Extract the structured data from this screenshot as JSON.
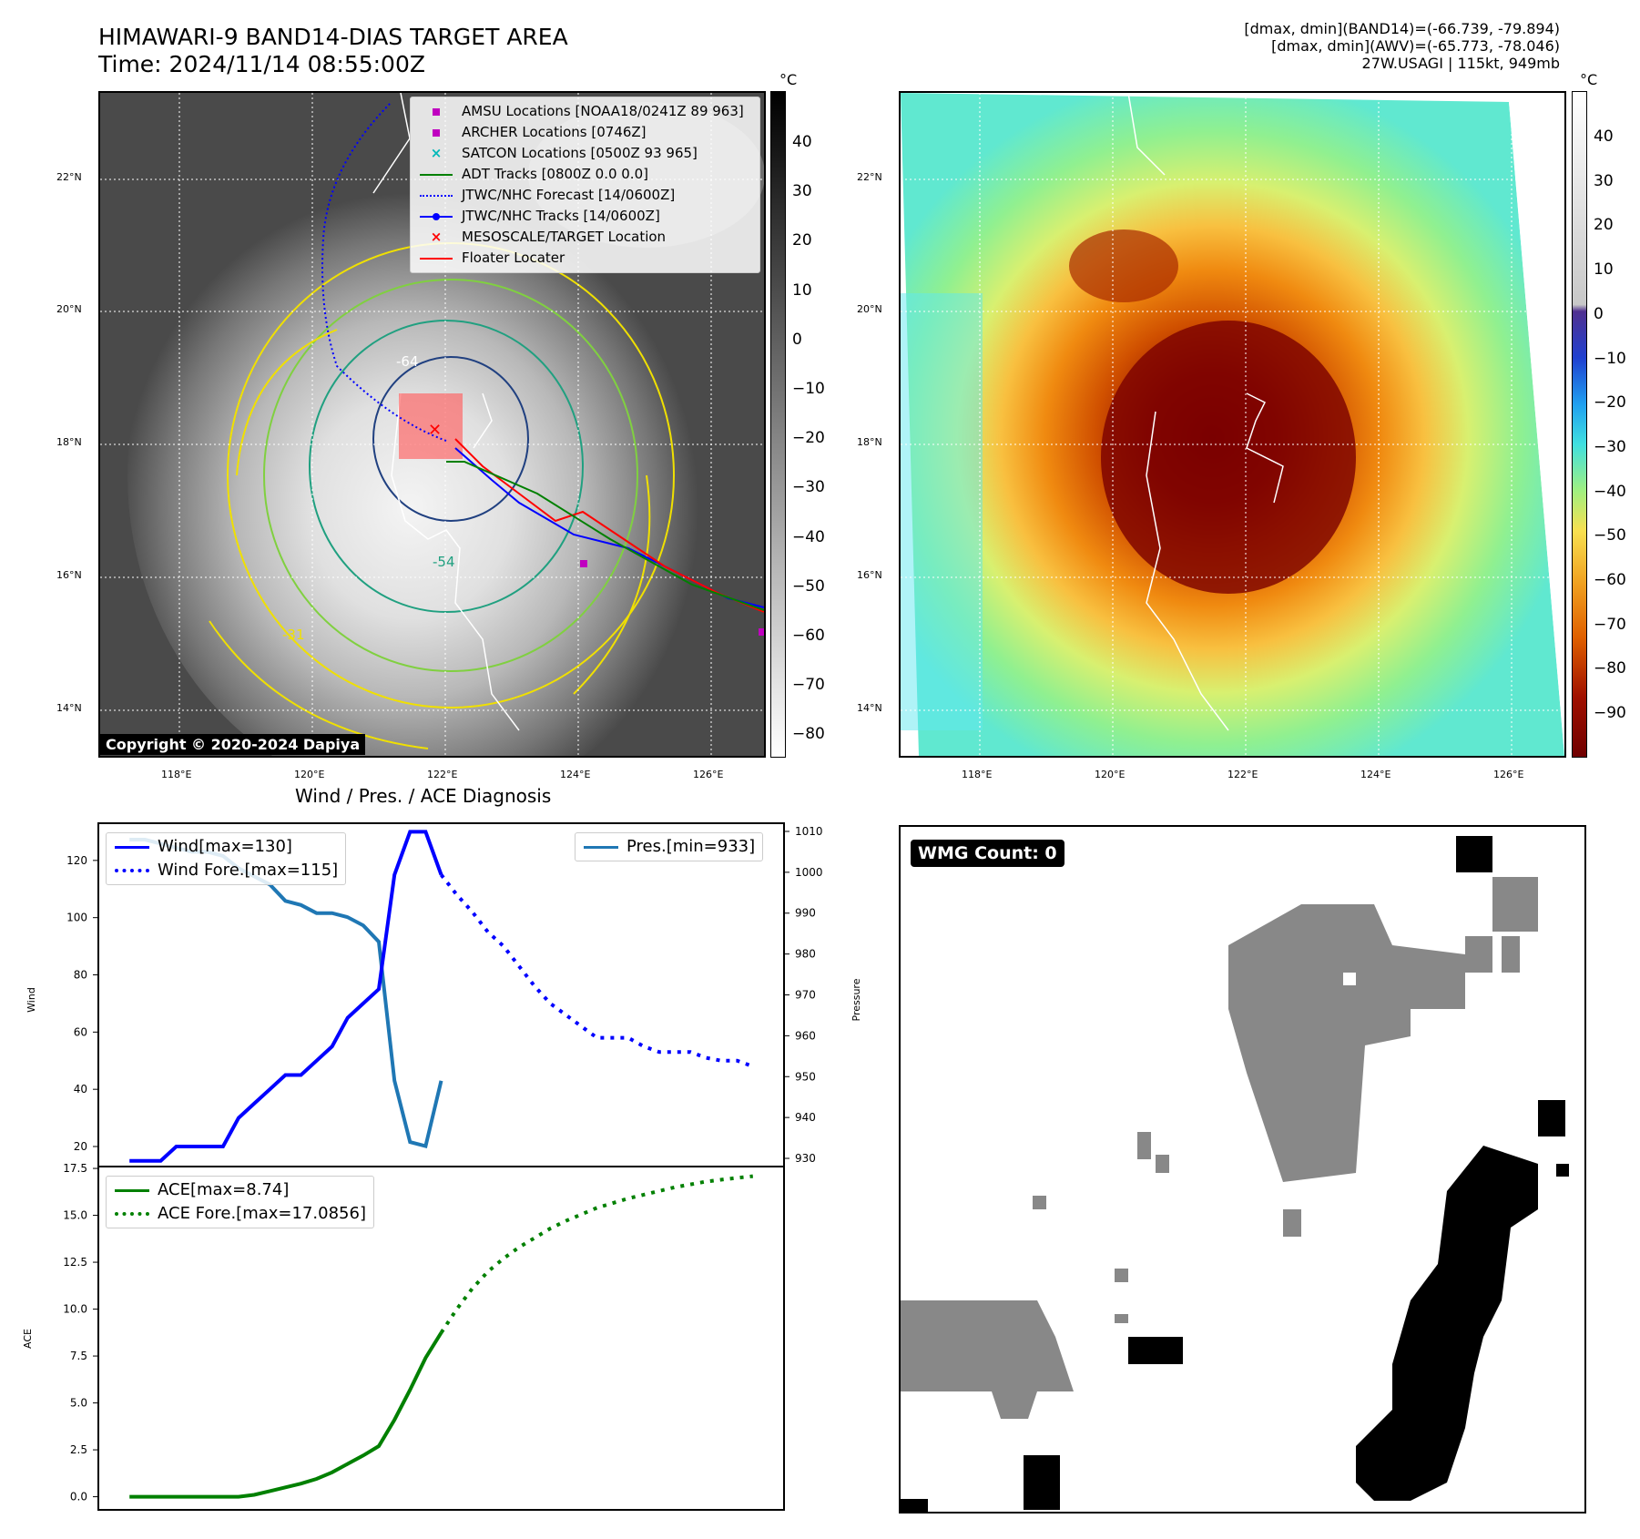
{
  "title": {
    "line1": "HIMAWARI-9 BAND14-DIAS TARGET AREA",
    "line2": "Time: 2024/11/14 08:55:00Z"
  },
  "info": {
    "line1": "[dmax, dmin](BAND14)=(-66.739, -79.894)",
    "line2": "[dmax, dmin](AWV)=(-65.773, -78.046)",
    "line3": "27W.USAGI | 115kt, 949mb"
  },
  "map": {
    "lat_labels": [
      "22°N",
      "20°N",
      "18°N",
      "16°N",
      "14°N"
    ],
    "lon_labels": [
      "118°E",
      "120°E",
      "122°E",
      "124°E",
      "126°E"
    ],
    "contour_labels": [
      "-64",
      "-54",
      "-31"
    ],
    "copyright": "Copyright © 2020-2024 Dapiya"
  },
  "colorbar_gray": {
    "unit": "°C",
    "ticks": [
      "40",
      "30",
      "20",
      "10",
      "0",
      "−10",
      "−20",
      "−30",
      "−40",
      "−50",
      "−60",
      "−70",
      "−80"
    ]
  },
  "colorbar_color": {
    "unit": "°C",
    "ticks": [
      "40",
      "30",
      "20",
      "10",
      "0",
      "−10",
      "−20",
      "−30",
      "−40",
      "−50",
      "−60",
      "−70",
      "−80",
      "−90"
    ]
  },
  "legend_map": {
    "items": [
      {
        "label": "AMSU Locations [NOAA18/0241Z 89 963]",
        "color": "#c000c0"
      },
      {
        "label": "ARCHER Locations [0746Z]",
        "color": "#c000c0"
      },
      {
        "label": "SATCON Locations [0500Z 93 965]",
        "color": "#00b8b8"
      },
      {
        "label": "ADT Tracks [0800Z 0.0 0.0]",
        "color": "#008000"
      },
      {
        "label": "JTWC/NHC Forecast [14/0600Z]",
        "color": "#0000ff"
      },
      {
        "label": "JTWC/NHC Tracks [14/0600Z]",
        "color": "#0000ff"
      },
      {
        "label": "MESOSCALE/TARGET Location",
        "color": "#ff0000"
      },
      {
        "label": "Floater Locater",
        "color": "#ff0000"
      }
    ]
  },
  "diagnosis": {
    "title": "Wind / Pres. / ACE Diagnosis",
    "wind_label": "Wind[max=130]",
    "wind_fore_label": "Wind Fore.[max=115]",
    "pres_label": "Pres.[min=933]",
    "ace_label": "ACE[max=8.74]",
    "ace_fore_label": "ACE Fore.[max=17.0856]",
    "wind_axis": "Wind",
    "pres_axis": "Pressure",
    "ace_axis": "ACE"
  },
  "wmg": {
    "label": "WMG Count: 0"
  },
  "chart_data": [
    {
      "type": "line",
      "title": "Wind / Pres. / ACE Diagnosis",
      "ylabel": "Wind",
      "ylim": [
        13,
        133
      ],
      "yticks": [
        20,
        40,
        60,
        80,
        100,
        120
      ],
      "series": [
        {
          "name": "Wind[max=130]",
          "color": "#0000ff",
          "style": "solid",
          "x": [
            0,
            1,
            2,
            3,
            4,
            5,
            6,
            7,
            8,
            9,
            10,
            11,
            12,
            13,
            14,
            15,
            16,
            17,
            18,
            19,
            20
          ],
          "values": [
            15,
            15,
            15,
            20,
            20,
            20,
            20,
            30,
            35,
            40,
            45,
            45,
            50,
            55,
            65,
            70,
            75,
            115,
            130,
            130,
            115
          ]
        },
        {
          "name": "Wind Fore.[max=115]",
          "color": "#0000ff",
          "style": "dotted",
          "x": [
            20,
            21,
            22,
            23,
            24,
            25,
            26,
            27,
            28,
            29,
            30,
            31,
            32,
            33,
            34,
            35,
            36,
            37,
            38,
            39,
            40
          ],
          "values": [
            115,
            108,
            102,
            95,
            90,
            83,
            76,
            70,
            66,
            62,
            58,
            58,
            58,
            55,
            53,
            53,
            53,
            51,
            50,
            50,
            48
          ]
        }
      ]
    },
    {
      "type": "line",
      "ylabel": "Pressure",
      "ylim": [
        928,
        1012
      ],
      "yticks": [
        930,
        940,
        950,
        960,
        970,
        980,
        990,
        1000,
        1010
      ],
      "series": [
        {
          "name": "Pres.[min=933]",
          "color": "#1f77b4",
          "style": "solid",
          "x": [
            0,
            1,
            2,
            3,
            4,
            5,
            6,
            7,
            8,
            9,
            10,
            11,
            12,
            13,
            14,
            15,
            16,
            17,
            18,
            19,
            20
          ],
          "values": [
            1008,
            1008,
            1007,
            1006,
            1005,
            1005,
            1004,
            1001,
            999,
            997,
            993,
            992,
            990,
            990,
            989,
            987,
            983,
            949,
            934,
            933,
            949
          ]
        }
      ]
    },
    {
      "type": "line",
      "ylabel": "ACE",
      "ylim": [
        -0.7,
        17.6
      ],
      "yticks": [
        0.0,
        2.5,
        5.0,
        7.5,
        10.0,
        12.5,
        15.0,
        17.5
      ],
      "series": [
        {
          "name": "ACE[max=8.74]",
          "color": "#008000",
          "style": "solid",
          "x": [
            0,
            1,
            2,
            3,
            4,
            5,
            6,
            7,
            8,
            9,
            10,
            11,
            12,
            13,
            14,
            15,
            16,
            17,
            18,
            19,
            20
          ],
          "values": [
            0,
            0,
            0,
            0,
            0,
            0,
            0,
            0,
            0.1,
            0.3,
            0.5,
            0.7,
            0.95,
            1.3,
            1.75,
            2.2,
            2.7,
            4.1,
            5.7,
            7.4,
            8.74
          ]
        },
        {
          "name": "ACE Fore.[max=17.0856]",
          "color": "#008000",
          "style": "dotted",
          "x": [
            20,
            21,
            22,
            23,
            24,
            25,
            26,
            27,
            28,
            29,
            30,
            31,
            32,
            33,
            34,
            35,
            36,
            37,
            38,
            39,
            40
          ],
          "values": [
            8.74,
            10.0,
            11.1,
            12.0,
            12.7,
            13.3,
            13.8,
            14.3,
            14.7,
            15.05,
            15.4,
            15.65,
            15.9,
            16.1,
            16.3,
            16.5,
            16.65,
            16.8,
            16.9,
            17.0,
            17.0856
          ]
        }
      ]
    }
  ]
}
